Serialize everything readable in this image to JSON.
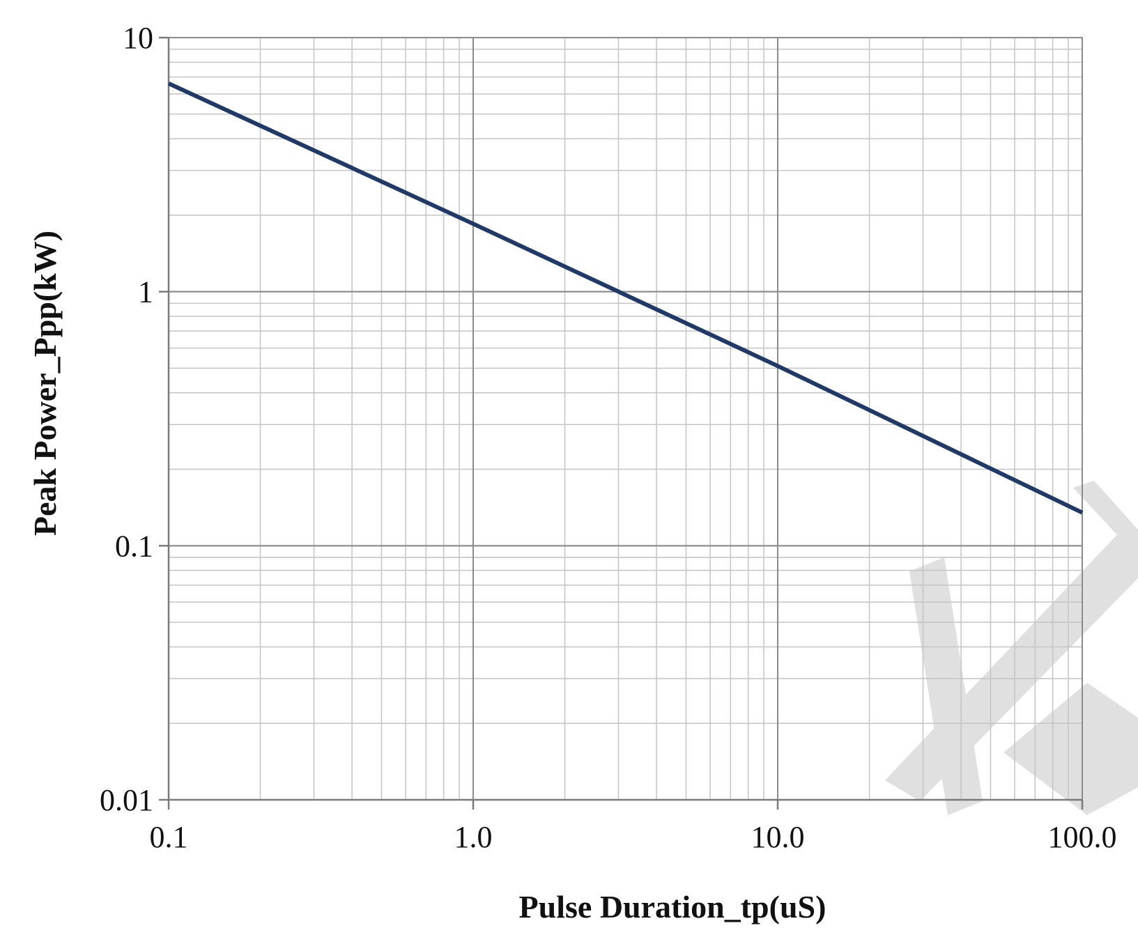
{
  "chart_data": {
    "type": "line",
    "xlabel": "Pulse Duration_tp(uS)",
    "ylabel": "Peak  Power_Ppp(kW)",
    "x_scale": "log",
    "y_scale": "log",
    "xlim": [
      0.1,
      100.0
    ],
    "ylim": [
      0.01,
      10
    ],
    "grid": true,
    "legend": "none",
    "x_tick_labels": [
      "0.1",
      "1.0",
      "10.0",
      "100.0"
    ],
    "y_tick_labels": [
      "10",
      "1",
      "0.1",
      "0.01"
    ],
    "series": [
      {
        "x": [
          0.1,
          1.0,
          10.0,
          100.0
        ],
        "y": [
          6.6,
          1.85,
          0.51,
          0.135
        ]
      }
    ],
    "colors": {
      "line": "#1f3a68",
      "grid_minor": "#c4c4c4",
      "grid_major": "#8c8c8c",
      "watermark": "#e0e0e0"
    }
  }
}
